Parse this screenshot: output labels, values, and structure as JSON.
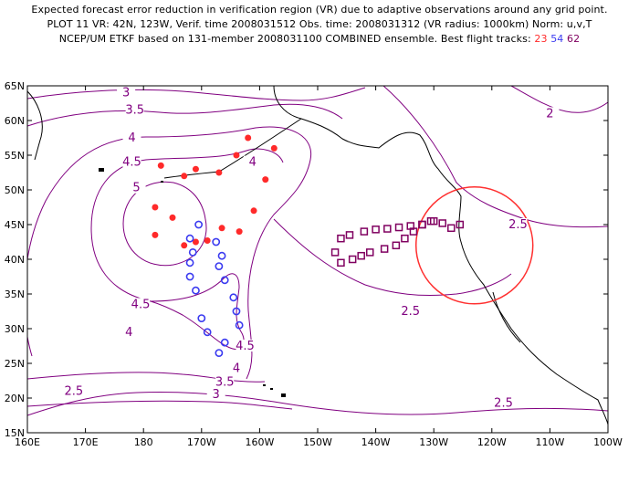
{
  "header": {
    "line1": "Expected forecast error reduction in verification region (VR) due to adaptive observations around any grid point.",
    "line2": "PLOT 11 VR: 42N, 123W, Verif. time 2008031512 Obs. time: 2008031312 (VR radius: 1000km) Norm: u,v,T",
    "line3_prefix": "NCEP/UM ETKF based on 131-member 2008031100 COMBINED ensemble.  Best flight tracks:",
    "tracks": [
      {
        "id": "23",
        "color": "#ff2a2a"
      },
      {
        "id": "54",
        "color": "#3a3af0"
      },
      {
        "id": "62",
        "color": "#800060"
      }
    ]
  },
  "map": {
    "lon_range": [
      160,
      260
    ],
    "lat_range": [
      15,
      65
    ],
    "x_ticks": [
      "160E",
      "170E",
      "180",
      "170W",
      "160W",
      "150W",
      "140W",
      "130W",
      "120W",
      "110W",
      "100W"
    ],
    "y_ticks": [
      "15N",
      "20N",
      "25N",
      "30N",
      "35N",
      "40N",
      "45N",
      "50N",
      "55N",
      "60N",
      "65N"
    ],
    "verification_circle": {
      "lat": 42,
      "lon": 237,
      "color": "#ff3030"
    },
    "contour_color": "#800080",
    "contour_labels": [
      {
        "text": "3",
        "lon": 177,
        "lat": 64
      },
      {
        "text": "3.5",
        "lon": 178.5,
        "lat": 61.5
      },
      {
        "text": "4",
        "lon": 178,
        "lat": 57.5
      },
      {
        "text": "4.5",
        "lon": 178,
        "lat": 54
      },
      {
        "text": "5",
        "lon": 178.8,
        "lat": 50.3
      },
      {
        "text": "4",
        "lon": 198.8,
        "lat": 54
      },
      {
        "text": "4.5",
        "lon": 179.5,
        "lat": 33.5
      },
      {
        "text": "4",
        "lon": 177.5,
        "lat": 29.5
      },
      {
        "text": "4.5",
        "lon": 197.5,
        "lat": 27.5
      },
      {
        "text": "4",
        "lon": 196,
        "lat": 24.3
      },
      {
        "text": "3.5",
        "lon": 194,
        "lat": 22.3
      },
      {
        "text": "3",
        "lon": 192.5,
        "lat": 20.5
      },
      {
        "text": "2.5",
        "lon": 168,
        "lat": 21
      },
      {
        "text": "2",
        "lon": 250,
        "lat": 61
      },
      {
        "text": "2.5",
        "lon": 244.5,
        "lat": 45
      },
      {
        "text": "2.5",
        "lon": 226,
        "lat": 32.5
      },
      {
        "text": "2.5",
        "lon": 242,
        "lat": 19.3
      }
    ],
    "track_23": [
      [
        183,
        53.5
      ],
      [
        189,
        53
      ],
      [
        193,
        52.5
      ],
      [
        196,
        55
      ],
      [
        198,
        57.5
      ],
      [
        202.5,
        56
      ],
      [
        201,
        51.5
      ],
      [
        199,
        47
      ],
      [
        196.5,
        44
      ],
      [
        193.5,
        44.5
      ],
      [
        191,
        42.7
      ],
      [
        189,
        42.5
      ],
      [
        187,
        42
      ],
      [
        185,
        46
      ],
      [
        182,
        43.5
      ],
      [
        182,
        47.5
      ],
      [
        187,
        52
      ]
    ],
    "track_54": [
      [
        188,
        43
      ],
      [
        188.5,
        41
      ],
      [
        188,
        39.5
      ],
      [
        188,
        37.5
      ],
      [
        189,
        35.5
      ],
      [
        190,
        31.5
      ],
      [
        191,
        29.5
      ],
      [
        193,
        26.5
      ],
      [
        194,
        28
      ],
      [
        196.5,
        30.5
      ],
      [
        196,
        32.5
      ],
      [
        195.5,
        34.5
      ],
      [
        194,
        37
      ],
      [
        193,
        39
      ],
      [
        193.5,
        40.5
      ],
      [
        192.5,
        42.5
      ],
      [
        189.5,
        45
      ]
    ],
    "track_62": [
      [
        213,
        41
      ],
      [
        214,
        39.5
      ],
      [
        216,
        40
      ],
      [
        217.5,
        40.5
      ],
      [
        219,
        41
      ],
      [
        221.5,
        41.5
      ],
      [
        223.5,
        42
      ],
      [
        225,
        43
      ],
      [
        226.5,
        44
      ],
      [
        228,
        45
      ],
      [
        229.5,
        45.5
      ],
      [
        231.5,
        45.2
      ],
      [
        233,
        44.5
      ],
      [
        234.5,
        45
      ],
      [
        230,
        45.5
      ],
      [
        228,
        45
      ],
      [
        226,
        44.8
      ],
      [
        224,
        44.6
      ],
      [
        222,
        44.4
      ],
      [
        220,
        44.3
      ],
      [
        218,
        44
      ],
      [
        215.5,
        43.5
      ],
      [
        214,
        43
      ]
    ]
  }
}
